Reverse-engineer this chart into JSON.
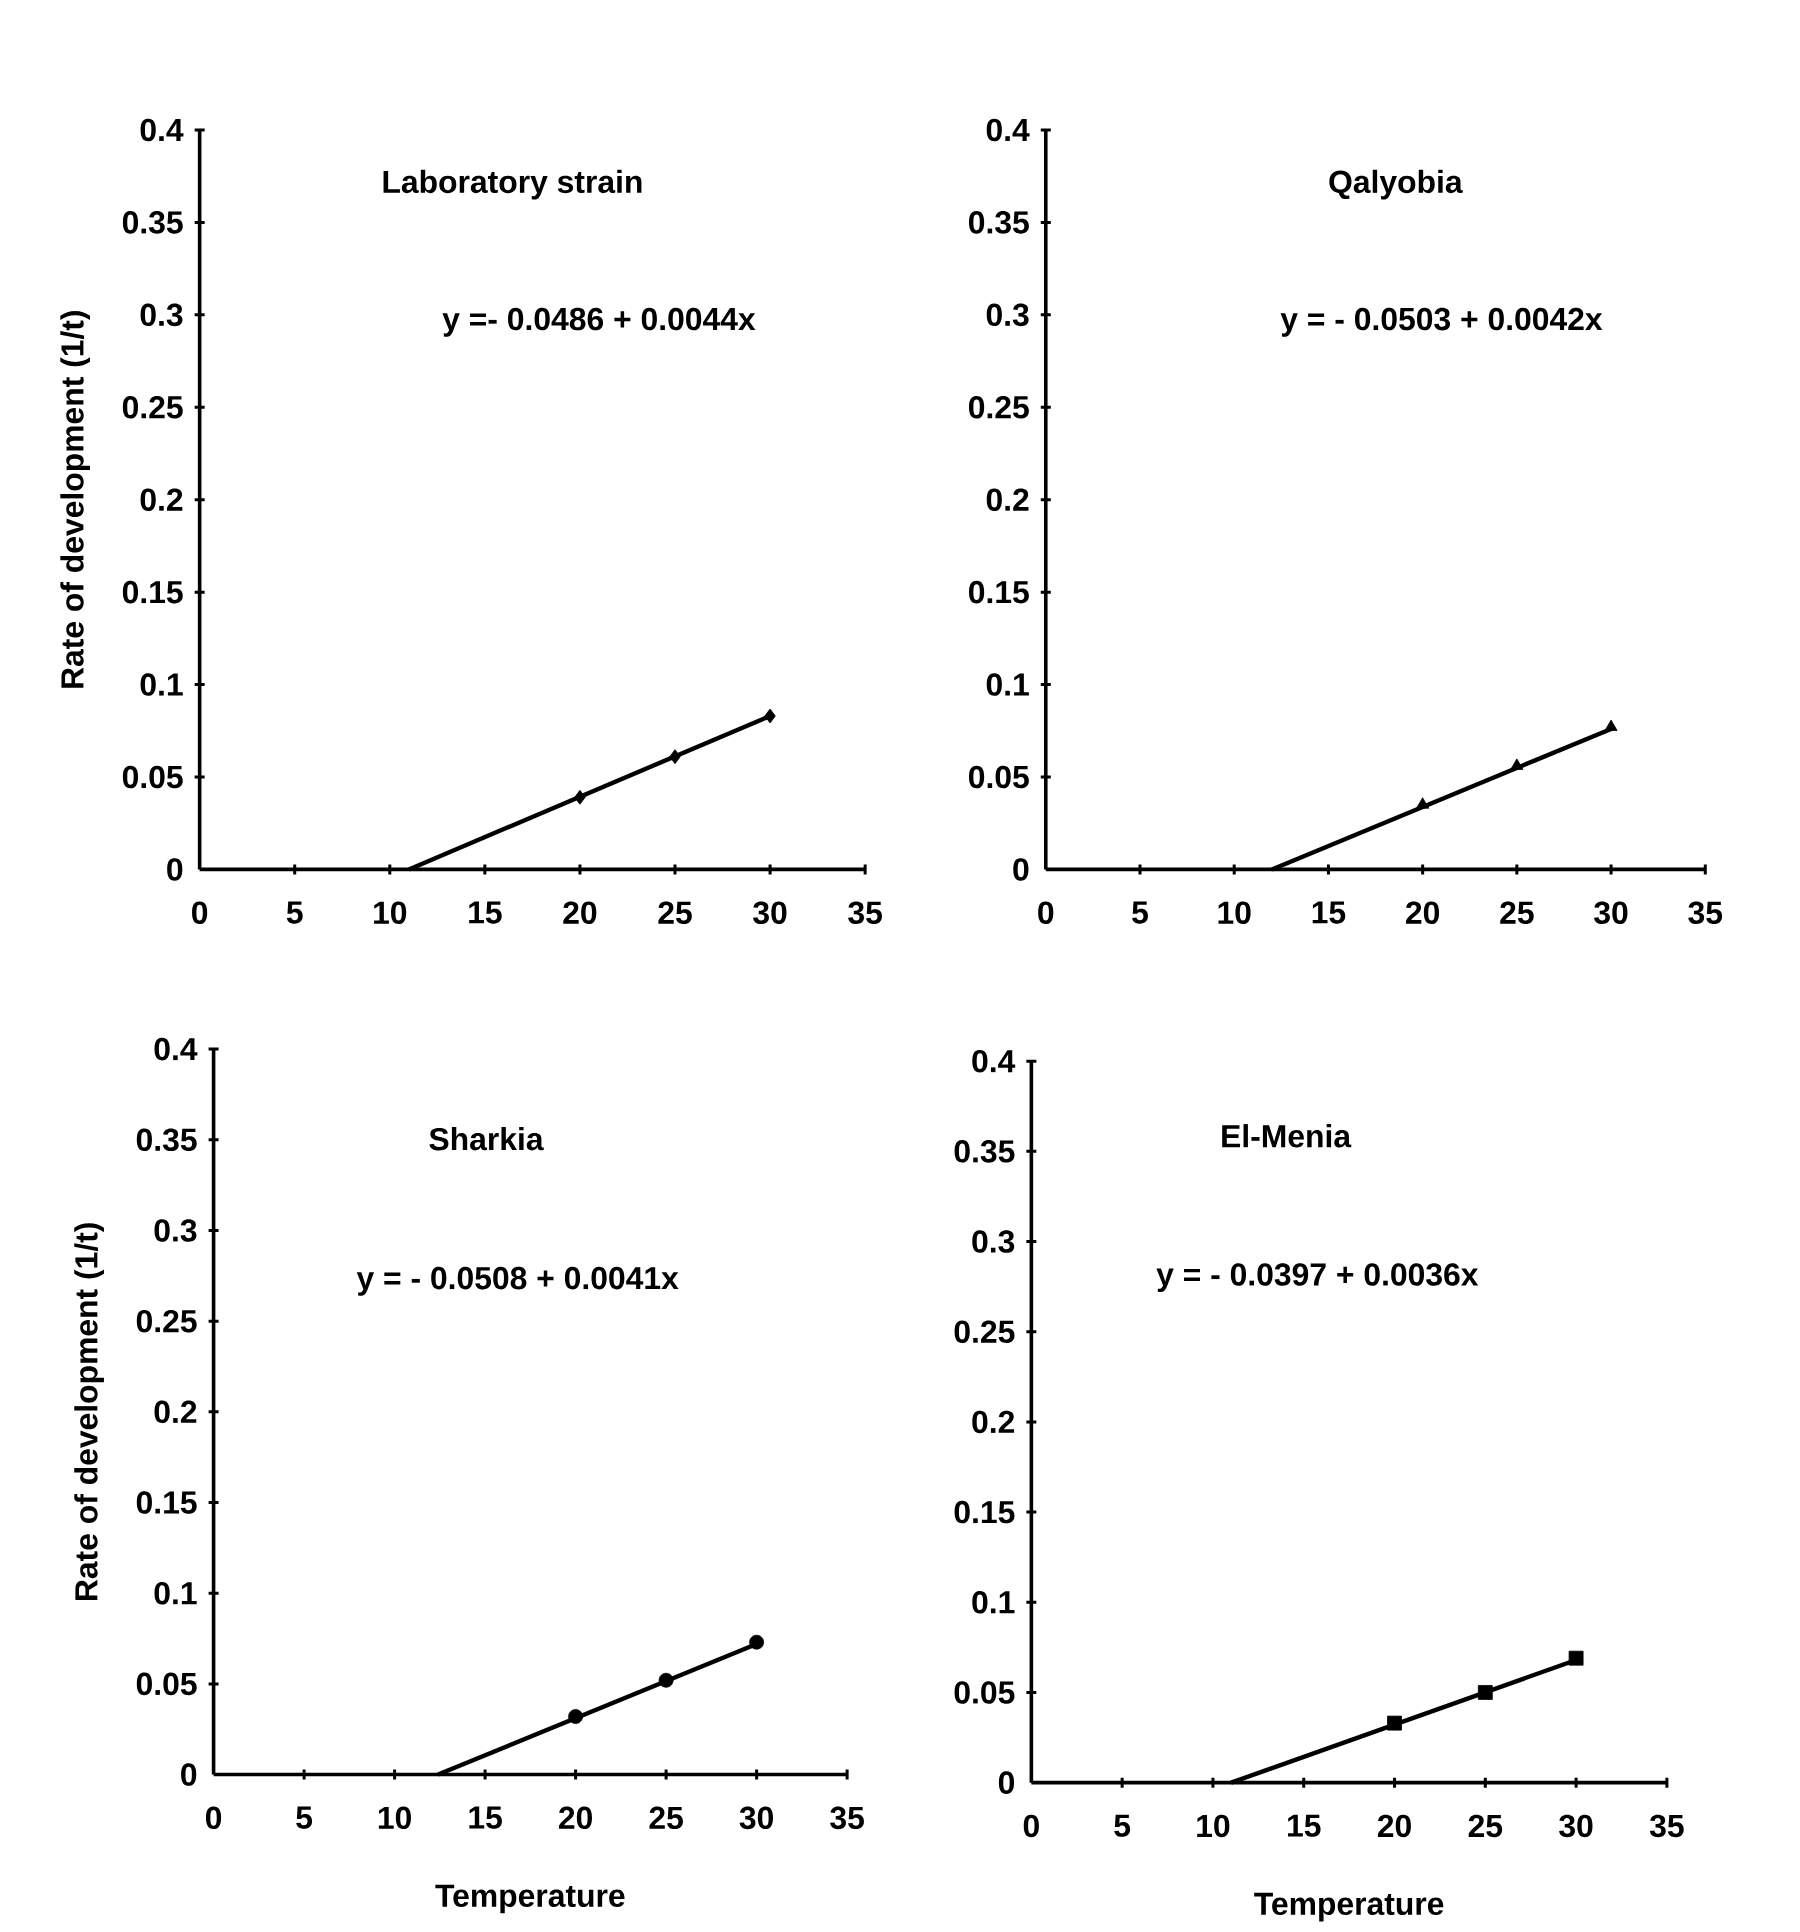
{
  "chart_data": [
    {
      "type": "scatter",
      "title": "Laboratory strain",
      "ylabel": "Rate of development (1/t)",
      "x": [
        20,
        25,
        30
      ],
      "series": [
        {
          "type": "scatter",
          "color": "#000000",
          "marker": "diamond",
          "values": [
            0.039,
            0.061,
            0.083
          ]
        },
        {
          "type": "line",
          "color": "#000000",
          "marker": "none",
          "x": [
            11,
            30
          ],
          "values": [
            0,
            0.083
          ]
        }
      ],
      "xlim": [
        0,
        35
      ],
      "ylim": [
        0,
        0.4
      ],
      "xticks": [
        0,
        5,
        10,
        15,
        20,
        25,
        30,
        35
      ],
      "yticks": [
        0,
        0.05,
        0.1,
        0.15,
        0.2,
        0.25,
        0.3,
        0.35,
        0.4
      ],
      "annotations": [
        "y =- 0.0486 + 0.0044x"
      ]
    },
    {
      "type": "scatter",
      "title": "Qalyobia",
      "x": [
        20,
        25,
        30
      ],
      "series": [
        {
          "type": "scatter",
          "color": "#000000",
          "marker": "triangle",
          "values": [
            0.035,
            0.056,
            0.077
          ]
        },
        {
          "type": "line",
          "color": "#000000",
          "marker": "none",
          "x": [
            12,
            30
          ],
          "values": [
            0,
            0.076
          ]
        }
      ],
      "xlim": [
        0,
        35
      ],
      "ylim": [
        0,
        0.4
      ],
      "xticks": [
        0,
        5,
        10,
        15,
        20,
        25,
        30,
        35
      ],
      "yticks": [
        0,
        0.05,
        0.1,
        0.15,
        0.2,
        0.25,
        0.3,
        0.35,
        0.4
      ],
      "annotations": [
        "y =  - 0.0503 + 0.0042x"
      ]
    },
    {
      "type": "scatter",
      "title": "Sharkia",
      "ylabel": "Rate of development (1/t)",
      "xlabel": "Temperature",
      "x": [
        20,
        25,
        30
      ],
      "series": [
        {
          "type": "scatter",
          "color": "#000000",
          "marker": "circle",
          "values": [
            0.032,
            0.052,
            0.073
          ]
        },
        {
          "type": "line",
          "color": "#000000",
          "marker": "none",
          "x": [
            12.4,
            30
          ],
          "values": [
            0,
            0.072
          ]
        }
      ],
      "xlim": [
        0,
        35
      ],
      "ylim": [
        0,
        0.4
      ],
      "xticks": [
        0,
        5,
        10,
        15,
        20,
        25,
        30,
        35
      ],
      "yticks": [
        0,
        0.05,
        0.1,
        0.15,
        0.2,
        0.25,
        0.3,
        0.35,
        0.4
      ],
      "annotations": [
        "y =  - 0.0508 + 0.0041x"
      ]
    },
    {
      "type": "scatter",
      "title": "El-Menia",
      "xlabel": "Temperature",
      "x": [
        20,
        25,
        30
      ],
      "series": [
        {
          "type": "scatter",
          "color": "#000000",
          "marker": "square",
          "values": [
            0.033,
            0.05,
            0.069
          ]
        },
        {
          "type": "line",
          "color": "#000000",
          "marker": "none",
          "x": [
            11,
            30
          ],
          "values": [
            0,
            0.068
          ]
        }
      ],
      "xlim": [
        0,
        35
      ],
      "ylim": [
        0,
        0.4
      ],
      "xticks": [
        0,
        5,
        10,
        15,
        20,
        25,
        30,
        35
      ],
      "yticks": [
        0,
        0.05,
        0.1,
        0.15,
        0.2,
        0.25,
        0.3,
        0.35,
        0.4
      ],
      "annotations": [
        "y = - 0.0397 + 0.0036x"
      ]
    }
  ]
}
